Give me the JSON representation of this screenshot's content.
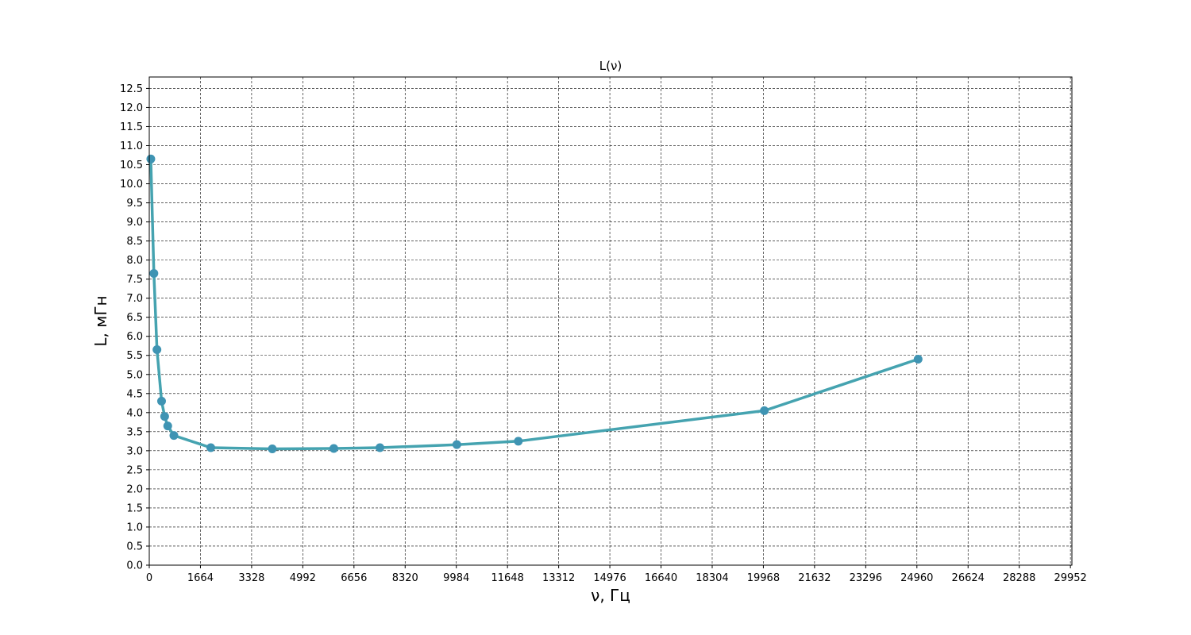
{
  "chart_data": {
    "type": "line",
    "title": "L(ν)",
    "xlabel": "ν, Гц",
    "ylabel": "L, мГн",
    "xlim": [
      0,
      30000
    ],
    "ylim": [
      0,
      12.8
    ],
    "x_ticks": [
      0,
      1664,
      3328,
      4992,
      6656,
      8320,
      9984,
      11648,
      13312,
      14976,
      16640,
      18304,
      19968,
      21632,
      23296,
      24960,
      26624,
      28288,
      29952
    ],
    "y_ticks": [
      0.0,
      0.5,
      1.0,
      1.5,
      2.0,
      2.5,
      3.0,
      3.5,
      4.0,
      4.5,
      5.0,
      5.5,
      6.0,
      6.5,
      7.0,
      7.5,
      8.0,
      8.5,
      9.0,
      9.5,
      10.0,
      10.5,
      11.0,
      11.5,
      12.0,
      12.5
    ],
    "y_tick_labels": [
      "0.0",
      "0.5",
      "1.0",
      "1.5",
      "2.0",
      "2.5",
      "3.0",
      "3.5",
      "4.0",
      "4.5",
      "5.0",
      "5.5",
      "6.0",
      "6.5",
      "7.0",
      "7.5",
      "8.0",
      "8.5",
      "9.0",
      "9.5",
      "10.0",
      "10.5",
      "11.0",
      "11.5",
      "12.0",
      "12.5"
    ],
    "grid": true,
    "series": [
      {
        "color": "#45a3b0",
        "marker_color": "#3f94b3",
        "x": [
          50,
          150,
          250,
          400,
          500,
          600,
          800,
          2000,
          4000,
          6000,
          7500,
          10000,
          12000,
          20000,
          25000
        ],
        "values": [
          10.65,
          7.65,
          5.65,
          4.3,
          3.9,
          3.65,
          3.4,
          3.08,
          3.05,
          3.06,
          3.08,
          3.16,
          3.25,
          4.05,
          5.4
        ]
      }
    ]
  }
}
